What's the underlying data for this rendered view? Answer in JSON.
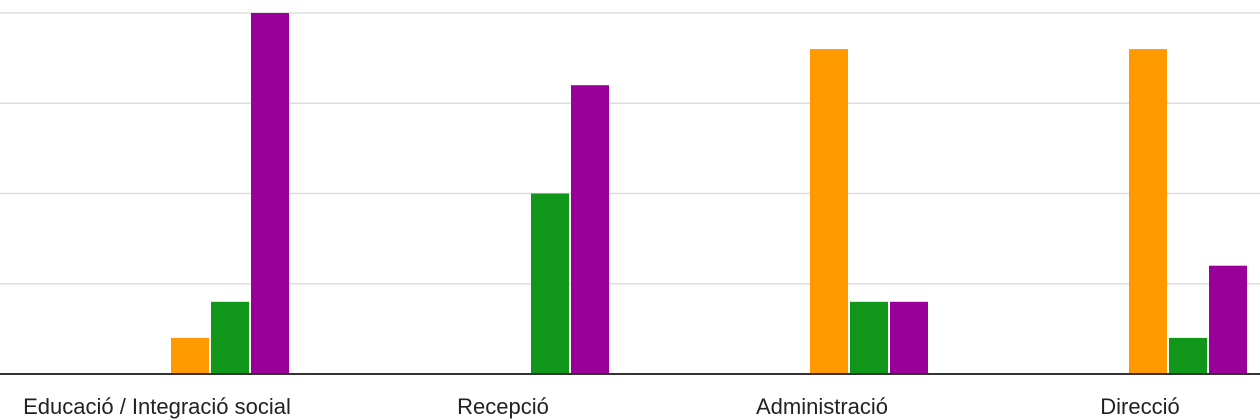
{
  "chart_data": {
    "type": "bar",
    "categories": [
      "Educació / Integració social",
      "Recepció",
      "Administració",
      "Direcció"
    ],
    "series": [
      {
        "color": "#ff9900",
        "values": [
          1,
          0,
          9,
          9
        ]
      },
      {
        "color": "#109618",
        "values": [
          2,
          5,
          2,
          1
        ]
      },
      {
        "color": "#990099",
        "values": [
          10,
          8,
          2,
          3
        ]
      }
    ],
    "ylim": [
      0,
      10
    ],
    "grid": true,
    "legend": "none",
    "title": "",
    "xlabel": "",
    "ylabel": ""
  }
}
